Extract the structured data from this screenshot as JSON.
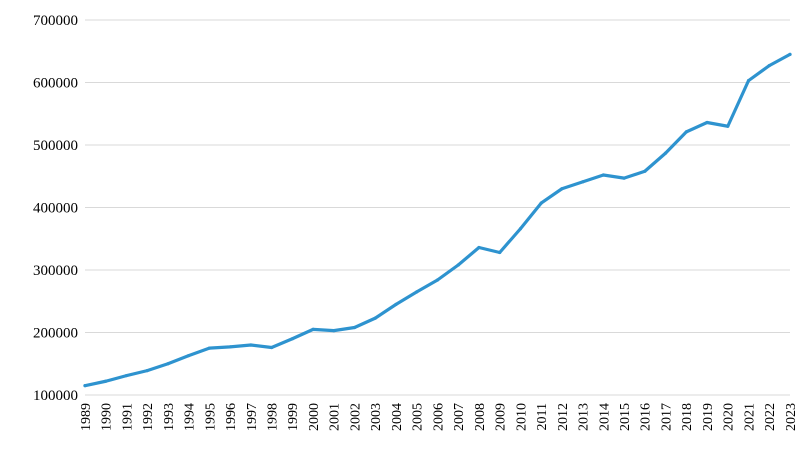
{
  "chart_data": {
    "type": "line",
    "title": "",
    "xlabel": "",
    "ylabel": "",
    "ylim": [
      100000,
      700000
    ],
    "yticks": [
      100000,
      200000,
      300000,
      400000,
      500000,
      600000,
      700000
    ],
    "grid": true,
    "legend": "none",
    "color": "#2e93cf",
    "x": [
      "1989",
      "1990",
      "1991",
      "1992",
      "1993",
      "1994",
      "1995",
      "1996",
      "1997",
      "1998",
      "1999",
      "2000",
      "2001",
      "2002",
      "2003",
      "2004",
      "2005",
      "2006",
      "2007",
      "2008",
      "2009",
      "2010",
      "2011",
      "2012",
      "2013",
      "2014",
      "2015",
      "2016",
      "2017",
      "2018",
      "2019",
      "2020",
      "2021",
      "2022",
      "2023"
    ],
    "series": [
      {
        "values": [
          115000,
          122000,
          131000,
          139000,
          150000,
          163000,
          175000,
          177000,
          180000,
          176000,
          190000,
          205000,
          203000,
          208000,
          223000,
          245000,
          265000,
          284000,
          308000,
          336000,
          328000,
          366000,
          407000,
          430000,
          441000,
          452000,
          447000,
          458000,
          487000,
          521000,
          536000,
          530000,
          603000,
          627000,
          645000
        ]
      }
    ]
  }
}
